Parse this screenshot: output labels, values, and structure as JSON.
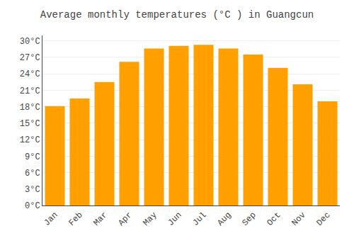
{
  "chart_data": {
    "type": "bar",
    "title": "Average monthly temperatures (°C ) in Guangcun",
    "categories": [
      "Jan",
      "Feb",
      "Mar",
      "Apr",
      "May",
      "Jun",
      "Jul",
      "Aug",
      "Sep",
      "Oct",
      "Nov",
      "Dec"
    ],
    "values": [
      18.1,
      19.5,
      22.5,
      26.2,
      28.6,
      29.1,
      29.3,
      28.6,
      27.5,
      25.1,
      22.1,
      19.0
    ],
    "color": "#FFA000",
    "ylim": [
      0,
      31
    ],
    "yticks": [
      {
        "value": 0,
        "label": "0°C"
      },
      {
        "value": 3,
        "label": "3°C"
      },
      {
        "value": 6,
        "label": "6°C"
      },
      {
        "value": 9,
        "label": "9°C"
      },
      {
        "value": 12,
        "label": "12°C"
      },
      {
        "value": 15,
        "label": "15°C"
      },
      {
        "value": 18,
        "label": "18°C"
      },
      {
        "value": 21,
        "label": "21°C"
      },
      {
        "value": 24,
        "label": "24°C"
      },
      {
        "value": 27,
        "label": "27°C"
      },
      {
        "value": 30,
        "label": "30°C"
      }
    ],
    "grid": true
  }
}
